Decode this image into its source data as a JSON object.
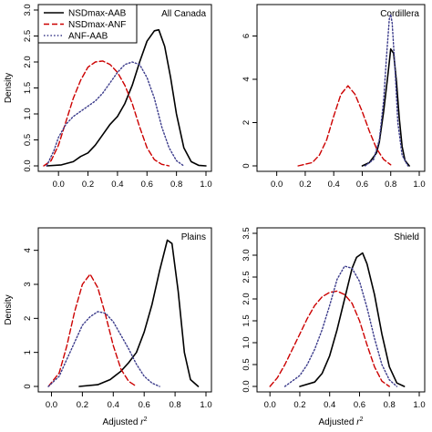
{
  "chart_data": [
    {
      "type": "line",
      "title": "All Canada",
      "xlabel": "",
      "ylabel": "Density",
      "xlim": [
        -0.1,
        1.0
      ],
      "ylim": [
        0,
        3.0
      ],
      "xticks": [
        0.0,
        0.2,
        0.4,
        0.6,
        0.8,
        1.0
      ],
      "yticks": [
        0.0,
        0.5,
        1.0,
        1.5,
        2.0,
        2.5,
        3.0
      ],
      "legend": {
        "placement": "top-left",
        "entries": [
          {
            "name": "NSDmax-AAB",
            "color": "#000000",
            "style": "solid"
          },
          {
            "name": "NSDmax-ANF",
            "color": "#cc0000",
            "style": "dashed"
          },
          {
            "name": "ANF-AAB",
            "color": "#3a3a8a",
            "style": "dotted"
          }
        ]
      },
      "series": [
        {
          "name": "NSDmax-AAB",
          "color": "#000000",
          "style": "solid",
          "x": [
            -0.08,
            0.02,
            0.1,
            0.15,
            0.2,
            0.25,
            0.3,
            0.35,
            0.4,
            0.45,
            0.5,
            0.55,
            0.6,
            0.65,
            0.68,
            0.72,
            0.76,
            0.8,
            0.85,
            0.9,
            0.95,
            1.0
          ],
          "y": [
            0,
            0.02,
            0.08,
            0.18,
            0.25,
            0.4,
            0.6,
            0.8,
            0.95,
            1.2,
            1.55,
            2.0,
            2.4,
            2.6,
            2.62,
            2.3,
            1.7,
            1.0,
            0.35,
            0.08,
            0.01,
            0
          ]
        },
        {
          "name": "NSDmax-ANF",
          "color": "#cc0000",
          "style": "dashed",
          "x": [
            -0.1,
            -0.05,
            0.0,
            0.05,
            0.1,
            0.15,
            0.2,
            0.25,
            0.3,
            0.35,
            0.4,
            0.45,
            0.5,
            0.55,
            0.6,
            0.65,
            0.7,
            0.75
          ],
          "y": [
            0,
            0.1,
            0.4,
            0.85,
            1.3,
            1.65,
            1.9,
            2.0,
            2.02,
            1.95,
            1.8,
            1.55,
            1.2,
            0.75,
            0.35,
            0.12,
            0.03,
            0
          ]
        },
        {
          "name": "ANF-AAB",
          "color": "#3a3a8a",
          "style": "dotted",
          "x": [
            -0.08,
            -0.03,
            0.0,
            0.05,
            0.1,
            0.15,
            0.2,
            0.25,
            0.3,
            0.35,
            0.4,
            0.45,
            0.5,
            0.55,
            0.6,
            0.65,
            0.7,
            0.75,
            0.8,
            0.85
          ],
          "y": [
            0,
            0.3,
            0.55,
            0.8,
            0.95,
            1.05,
            1.15,
            1.25,
            1.4,
            1.6,
            1.8,
            1.95,
            2.0,
            1.95,
            1.7,
            1.3,
            0.75,
            0.35,
            0.1,
            0
          ]
        }
      ]
    },
    {
      "type": "line",
      "title": "Cordillera",
      "xlabel": "",
      "ylabel": "",
      "xlim": [
        -0.1,
        1.0
      ],
      "ylim": [
        0,
        7.2
      ],
      "xticks": [
        0.0,
        0.2,
        0.4,
        0.6,
        0.8,
        1.0
      ],
      "yticks": [
        0,
        2,
        4,
        6
      ],
      "series": [
        {
          "name": "NSDmax-AAB",
          "color": "#000000",
          "style": "solid",
          "x": [
            0.6,
            0.65,
            0.7,
            0.72,
            0.75,
            0.78,
            0.8,
            0.82,
            0.84,
            0.86,
            0.88,
            0.9,
            0.93
          ],
          "y": [
            0,
            0.15,
            0.6,
            1.1,
            2.5,
            4.2,
            5.4,
            5.2,
            3.9,
            2.2,
            0.9,
            0.25,
            0
          ]
        },
        {
          "name": "NSDmax-ANF",
          "color": "#cc0000",
          "style": "dashed",
          "x": [
            0.15,
            0.25,
            0.3,
            0.35,
            0.4,
            0.45,
            0.5,
            0.55,
            0.6,
            0.65,
            0.7,
            0.75,
            0.8
          ],
          "y": [
            0,
            0.15,
            0.5,
            1.2,
            2.3,
            3.3,
            3.7,
            3.3,
            2.5,
            1.6,
            0.8,
            0.3,
            0.05
          ]
        },
        {
          "name": "ANF-AAB",
          "color": "#3a3a8a",
          "style": "dotted",
          "x": [
            0.62,
            0.68,
            0.72,
            0.75,
            0.77,
            0.79,
            0.8,
            0.81,
            0.83,
            0.85,
            0.88,
            0.92
          ],
          "y": [
            0,
            0.3,
            1.2,
            3.0,
            5.0,
            6.8,
            7.0,
            6.6,
            4.5,
            2.0,
            0.5,
            0
          ]
        }
      ]
    },
    {
      "type": "line",
      "title": "Plains",
      "xlabel": "Adjusted r^2",
      "ylabel": "Density",
      "xlim": [
        -0.05,
        1.0
      ],
      "ylim": [
        0,
        4.5
      ],
      "xticks": [
        0.0,
        0.2,
        0.4,
        0.6,
        0.8,
        1.0
      ],
      "yticks": [
        0,
        1,
        2,
        3,
        4
      ],
      "series": [
        {
          "name": "NSDmax-AAB",
          "color": "#000000",
          "style": "solid",
          "x": [
            0.18,
            0.3,
            0.38,
            0.45,
            0.5,
            0.55,
            0.6,
            0.65,
            0.7,
            0.75,
            0.78,
            0.82,
            0.86,
            0.9,
            0.95
          ],
          "y": [
            0,
            0.05,
            0.2,
            0.45,
            0.7,
            1.0,
            1.6,
            2.4,
            3.4,
            4.3,
            4.2,
            2.8,
            1.0,
            0.2,
            0
          ]
        },
        {
          "name": "NSDmax-ANF",
          "color": "#cc0000",
          "style": "dashed",
          "x": [
            -0.02,
            0.05,
            0.1,
            0.15,
            0.2,
            0.25,
            0.3,
            0.35,
            0.4,
            0.45,
            0.5,
            0.55
          ],
          "y": [
            0,
            0.4,
            1.2,
            2.2,
            3.0,
            3.3,
            2.9,
            2.1,
            1.2,
            0.5,
            0.15,
            0
          ]
        },
        {
          "name": "ANF-AAB",
          "color": "#3a3a8a",
          "style": "dotted",
          "x": [
            -0.02,
            0.05,
            0.1,
            0.15,
            0.2,
            0.25,
            0.3,
            0.35,
            0.4,
            0.45,
            0.5,
            0.55,
            0.6,
            0.65,
            0.7
          ],
          "y": [
            0,
            0.3,
            0.8,
            1.3,
            1.8,
            2.05,
            2.2,
            2.15,
            1.9,
            1.5,
            1.1,
            0.65,
            0.3,
            0.1,
            0
          ]
        }
      ]
    },
    {
      "type": "line",
      "title": "Shield",
      "xlabel": "Adjusted r^2",
      "ylabel": "",
      "xlim": [
        -0.05,
        1.0
      ],
      "ylim": [
        0,
        3.5
      ],
      "xticks": [
        0.0,
        0.2,
        0.4,
        0.6,
        0.8,
        1.0
      ],
      "yticks": [
        0.0,
        0.5,
        1.0,
        1.5,
        2.0,
        2.5,
        3.0,
        3.5
      ],
      "series": [
        {
          "name": "NSDmax-AAB",
          "color": "#000000",
          "style": "solid",
          "x": [
            0.2,
            0.3,
            0.35,
            0.4,
            0.45,
            0.5,
            0.55,
            0.58,
            0.62,
            0.65,
            0.7,
            0.75,
            0.8,
            0.85,
            0.9
          ],
          "y": [
            0,
            0.1,
            0.3,
            0.7,
            1.3,
            2.0,
            2.7,
            2.95,
            3.05,
            2.8,
            2.1,
            1.2,
            0.45,
            0.08,
            0
          ]
        },
        {
          "name": "NSDmax-ANF",
          "color": "#cc0000",
          "style": "dashed",
          "x": [
            0.0,
            0.05,
            0.1,
            0.15,
            0.2,
            0.25,
            0.3,
            0.35,
            0.4,
            0.45,
            0.5,
            0.55,
            0.6,
            0.65,
            0.7,
            0.75,
            0.8
          ],
          "y": [
            0,
            0.2,
            0.5,
            0.85,
            1.2,
            1.55,
            1.85,
            2.05,
            2.15,
            2.18,
            2.1,
            1.9,
            1.5,
            0.95,
            0.45,
            0.12,
            0
          ]
        },
        {
          "name": "ANF-AAB",
          "color": "#3a3a8a",
          "style": "dotted",
          "x": [
            0.1,
            0.2,
            0.25,
            0.3,
            0.35,
            0.4,
            0.45,
            0.5,
            0.55,
            0.6,
            0.65,
            0.7,
            0.75,
            0.8,
            0.85
          ],
          "y": [
            0,
            0.25,
            0.5,
            0.85,
            1.3,
            1.85,
            2.45,
            2.75,
            2.7,
            2.4,
            1.8,
            1.1,
            0.5,
            0.15,
            0
          ]
        }
      ]
    }
  ]
}
